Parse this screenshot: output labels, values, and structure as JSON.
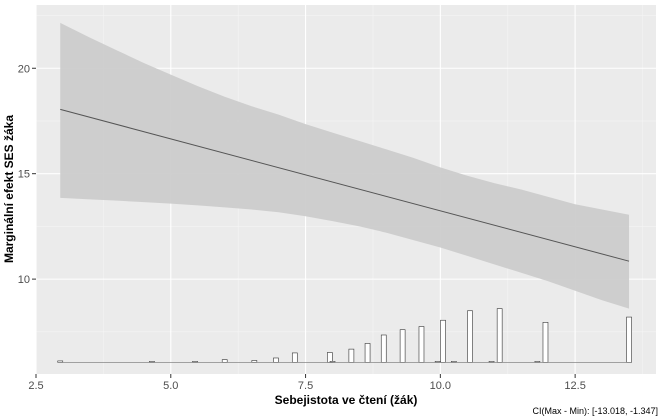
{
  "chart_data": {
    "type": "line",
    "title": "",
    "xlabel": "Sebejistota ve čtení (žák)",
    "ylabel": "Marginální efekt SES žáka",
    "xlim": [
      2.5,
      14.0
    ],
    "ylim": [
      5.5,
      23.0
    ],
    "x_ticks": [
      2.5,
      5.0,
      7.5,
      10.0,
      12.5
    ],
    "x_tick_labels": [
      "2.5",
      "5.0",
      "7.5",
      "10.0",
      "12.5"
    ],
    "y_ticks": [
      10,
      15,
      20
    ],
    "y_tick_labels": [
      "10",
      "15",
      "20"
    ],
    "grid": true,
    "panel_background": "#ebebeb",
    "line_color": "#555555",
    "ribbon_color": "#cccccc",
    "histogram_outline": "#333333",
    "effect_line": {
      "x": [
        2.95,
        13.5
      ],
      "y": [
        18.05,
        10.85
      ]
    },
    "confidence_band": {
      "x": [
        2.95,
        3.5,
        4.0,
        4.5,
        5.0,
        5.5,
        6.0,
        6.5,
        7.0,
        7.5,
        8.0,
        8.5,
        9.0,
        9.5,
        10.0,
        10.5,
        11.0,
        11.5,
        12.0,
        12.5,
        13.0,
        13.5
      ],
      "upper": [
        22.15,
        21.45,
        20.85,
        20.25,
        19.7,
        19.15,
        18.65,
        18.2,
        17.8,
        17.35,
        16.95,
        16.55,
        16.15,
        15.75,
        15.3,
        14.9,
        14.55,
        14.25,
        13.9,
        13.55,
        13.3,
        13.05
      ],
      "lower": [
        13.85,
        13.78,
        13.72,
        13.65,
        13.58,
        13.5,
        13.4,
        13.3,
        13.17,
        12.98,
        12.75,
        12.5,
        12.2,
        11.85,
        11.5,
        11.1,
        10.7,
        10.3,
        9.9,
        9.45,
        9.0,
        8.6
      ]
    },
    "histogram": {
      "baseline": 6.05,
      "bars": [
        {
          "x": 2.95,
          "top": 6.12
        },
        {
          "x": 4.65,
          "top": 6.1
        },
        {
          "x": 5.45,
          "top": 6.1
        },
        {
          "x": 6.0,
          "top": 6.18
        },
        {
          "x": 6.55,
          "top": 6.14
        },
        {
          "x": 6.95,
          "top": 6.26
        },
        {
          "x": 7.3,
          "top": 6.5
        },
        {
          "x": 7.95,
          "top": 6.52
        },
        {
          "x": 8.0,
          "top": 6.1
        },
        {
          "x": 8.35,
          "top": 6.68
        },
        {
          "x": 8.65,
          "top": 6.95
        },
        {
          "x": 8.95,
          "top": 7.35
        },
        {
          "x": 9.3,
          "top": 7.6
        },
        {
          "x": 9.65,
          "top": 7.75
        },
        {
          "x": 9.95,
          "top": 6.1
        },
        {
          "x": 10.05,
          "top": 8.05
        },
        {
          "x": 10.25,
          "top": 6.1
        },
        {
          "x": 10.55,
          "top": 8.5
        },
        {
          "x": 10.95,
          "top": 6.1
        },
        {
          "x": 11.1,
          "top": 8.6
        },
        {
          "x": 11.8,
          "top": 6.1
        },
        {
          "x": 11.95,
          "top": 7.95
        },
        {
          "x": 13.5,
          "top": 8.2
        }
      ]
    },
    "annotation": "CI(Max - Min): [-13.018, -1.347]"
  }
}
